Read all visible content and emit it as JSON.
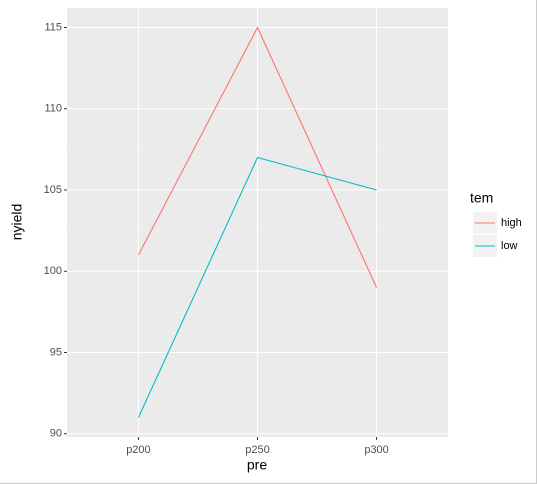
{
  "chart_data": {
    "type": "line",
    "x_label": "pre",
    "y_label": "nyield",
    "categories": [
      "p200",
      "p250",
      "p300"
    ],
    "series": [
      {
        "name": "high",
        "color": "#F8766D",
        "values": [
          101,
          115,
          99
        ]
      },
      {
        "name": "low",
        "color": "#00BFC4",
        "values": [
          91,
          107,
          105
        ]
      }
    ],
    "ylim": [
      89.8,
      116.2
    ],
    "yticks": [
      90,
      95,
      100,
      105,
      110,
      115
    ],
    "grid": true,
    "legend_title": "tem",
    "legend_position": "right"
  }
}
